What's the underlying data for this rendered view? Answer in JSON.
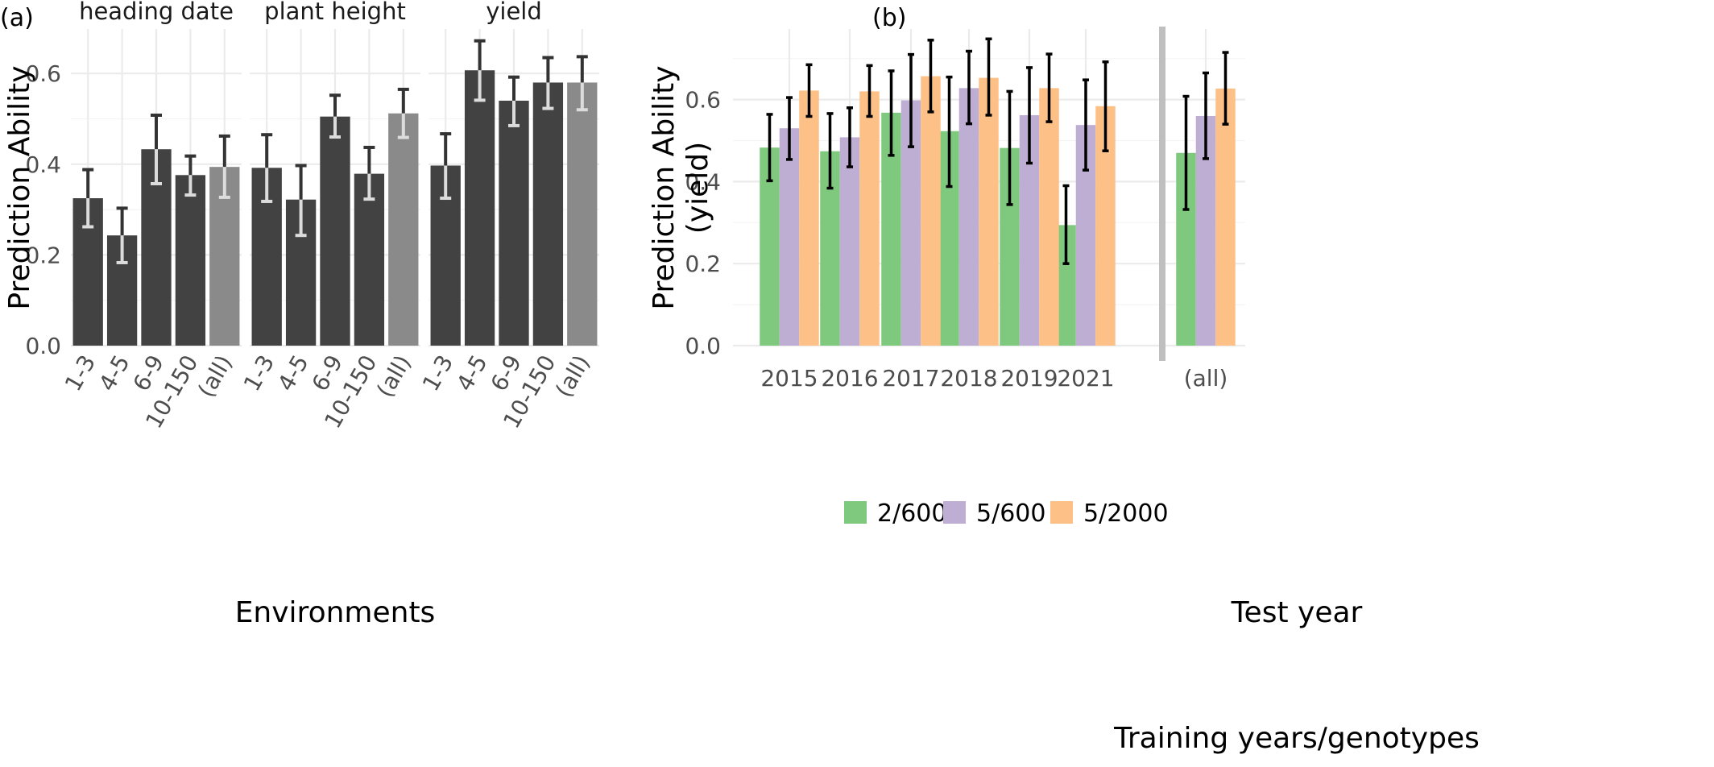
{
  "panel_a_tag": "(a)",
  "panel_b_tag": "(b)",
  "colors": {
    "bar_main": "#424242",
    "bar_all": "#8a8a8a",
    "err_on_dark": "#dcdcdc",
    "err_dark": "#333333",
    "err_b": "#000000",
    "separator": "#bfbfbf",
    "green": "#7fc97f",
    "purple": "#beaed4",
    "orange": "#fdc086"
  },
  "chart_data": [
    {
      "type": "bar",
      "panel": "(a)",
      "xlabel": "Environments",
      "ylabel": "Prediction Ability",
      "ylim": [
        0,
        0.7
      ],
      "yticks": [
        "0.0",
        "0.2",
        "0.4",
        "0.6"
      ],
      "categories": [
        "1-3",
        "4-5",
        "6-9",
        "10-150",
        "(all)"
      ],
      "facets": [
        {
          "name": "heading date",
          "values": [
            0.325,
            0.243,
            0.433,
            0.376,
            0.394
          ],
          "err_low": [
            0.262,
            0.183,
            0.357,
            0.332,
            0.327
          ],
          "err_high": [
            0.388,
            0.303,
            0.508,
            0.418,
            0.462
          ]
        },
        {
          "name": "plant height",
          "values": [
            0.392,
            0.322,
            0.505,
            0.379,
            0.512
          ],
          "err_low": [
            0.318,
            0.243,
            0.46,
            0.323,
            0.459
          ],
          "err_high": [
            0.465,
            0.397,
            0.552,
            0.437,
            0.565
          ]
        },
        {
          "name": "yield",
          "values": [
            0.397,
            0.607,
            0.54,
            0.58,
            0.58
          ],
          "err_low": [
            0.325,
            0.541,
            0.485,
            0.523,
            0.52
          ],
          "err_high": [
            0.467,
            0.672,
            0.592,
            0.635,
            0.637
          ]
        }
      ]
    },
    {
      "type": "bar",
      "panel": "(b)",
      "xlabel": "Test year",
      "ylabel": "Prediction Ability\n(yield)",
      "ylim": [
        0,
        0.76
      ],
      "yticks": [
        "0.0",
        "0.2",
        "0.4",
        "0.6"
      ],
      "categories": [
        "2015",
        "2016",
        "2017",
        "2018",
        "2019",
        "2021"
      ],
      "all_category": "(all)",
      "legend_title": "Training years/genotypes",
      "series": [
        {
          "name": "2/600",
          "values": [
            0.483,
            0.474,
            0.568,
            0.523,
            0.482,
            0.294
          ],
          "err_low": [
            0.402,
            0.384,
            0.464,
            0.388,
            0.344,
            0.2
          ],
          "err_high": [
            0.564,
            0.566,
            0.67,
            0.655,
            0.62,
            0.39
          ],
          "all": {
            "value": 0.47,
            "low": 0.332,
            "high": 0.608
          }
        },
        {
          "name": "5/600",
          "values": [
            0.53,
            0.508,
            0.598,
            0.628,
            0.562,
            0.538
          ],
          "err_low": [
            0.454,
            0.436,
            0.485,
            0.541,
            0.445,
            0.428
          ],
          "err_high": [
            0.605,
            0.58,
            0.71,
            0.718,
            0.678,
            0.648
          ],
          "all": {
            "value": 0.56,
            "low": 0.456,
            "high": 0.665
          }
        },
        {
          "name": "5/2000",
          "values": [
            0.622,
            0.62,
            0.657,
            0.653,
            0.628,
            0.584
          ],
          "err_low": [
            0.559,
            0.559,
            0.57,
            0.562,
            0.546,
            0.475
          ],
          "err_high": [
            0.685,
            0.683,
            0.745,
            0.748,
            0.711,
            0.692
          ],
          "all": {
            "value": 0.627,
            "low": 0.54,
            "high": 0.715
          }
        }
      ]
    }
  ]
}
